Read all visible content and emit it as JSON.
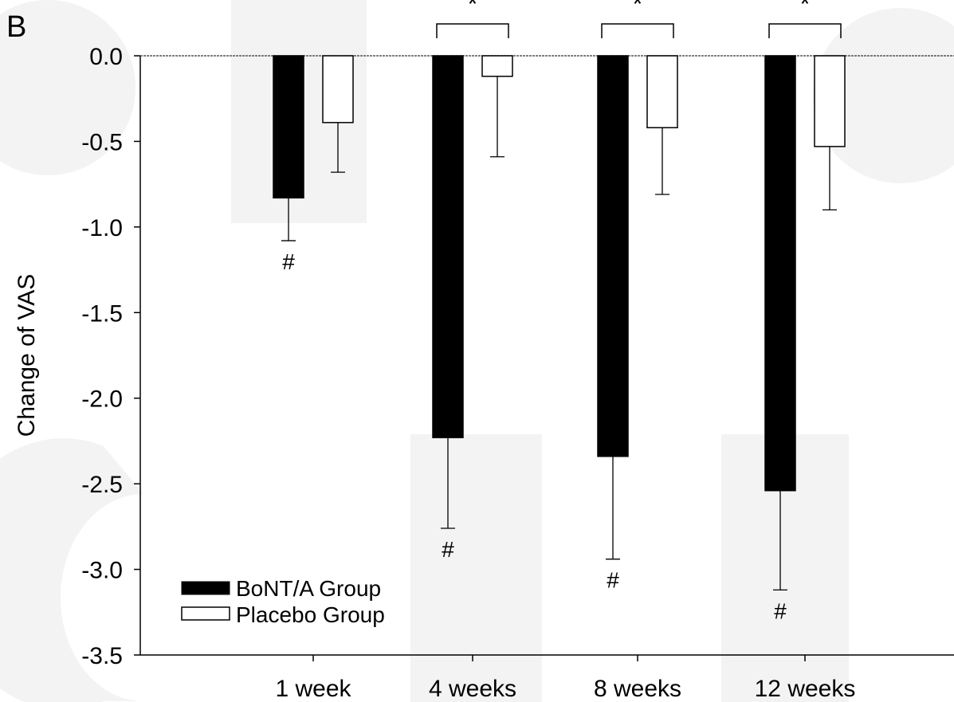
{
  "panel_label": "B",
  "chart_data": {
    "type": "bar",
    "ylabel": "Change of VAS",
    "xlabel": "",
    "ylim": [
      -3.5,
      0.0
    ],
    "yticks": [
      "0.0",
      "-0.5",
      "-1.0",
      "-1.5",
      "-2.0",
      "-2.5",
      "-3.0",
      "-3.5"
    ],
    "categories": [
      "1 week",
      "4 weeks",
      "8 weeks",
      "12 weeks"
    ],
    "series": [
      {
        "name": "BoNT/A Group",
        "fill": "#000000",
        "values": [
          -0.83,
          -2.23,
          -2.34,
          -2.54
        ],
        "error": [
          0.25,
          0.53,
          0.6,
          0.58
        ],
        "markers": [
          "#",
          "#",
          "#",
          "#"
        ]
      },
      {
        "name": "Placebo Group",
        "fill": "#ffffff",
        "values": [
          -0.39,
          -0.12,
          -0.42,
          -0.53
        ],
        "error": [
          0.29,
          0.47,
          0.39,
          0.37
        ],
        "markers": [
          "",
          "",
          "",
          ""
        ]
      }
    ],
    "significance": [
      "",
      "*",
      "*",
      "*"
    ],
    "legend_position": "bottom-left",
    "grid": false
  },
  "watermark_colors": {
    "letters": "#f2f2f2"
  }
}
